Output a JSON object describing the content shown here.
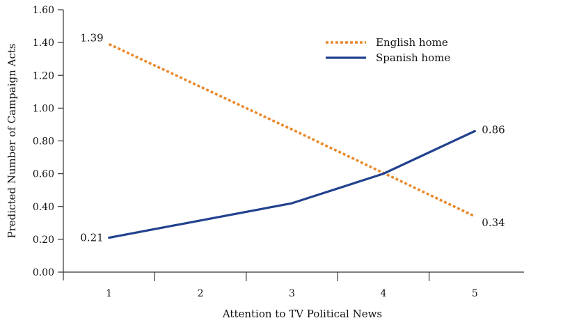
{
  "chart_data": {
    "type": "line",
    "title": "",
    "xlabel": "Attention to TV Political News",
    "ylabel": "Predicted Number of Campaign Acts",
    "x": [
      1,
      2,
      3,
      4,
      5
    ],
    "x_tick_labels": [
      "1",
      "2",
      "3",
      "4",
      "5"
    ],
    "ylim": [
      0,
      1.6
    ],
    "y_ticks": [
      0,
      0.2,
      0.4,
      0.6,
      0.8,
      1.0,
      1.2,
      1.4,
      1.6
    ],
    "y_tick_labels": [
      "0.00",
      "0.20",
      "0.40",
      "0.60",
      "0.80",
      "1.00",
      "1.20",
      "1.40",
      "1.60"
    ],
    "grid": false,
    "legend_position": "top-right",
    "series": [
      {
        "name": "English home",
        "values": [
          1.39,
          1.13,
          0.87,
          0.605,
          0.34
        ],
        "color": "#e8892b",
        "style": "dotted",
        "labels": [
          {
            "index": 0,
            "text": "1.39",
            "side": "left"
          },
          {
            "index": 4,
            "text": "0.34",
            "side": "right-below"
          }
        ]
      },
      {
        "name": "Spanish home",
        "values": [
          0.21,
          0.315,
          0.42,
          0.6,
          0.86
        ],
        "color": "#22418f",
        "style": "solid",
        "labels": [
          {
            "index": 0,
            "text": "0.21",
            "side": "left"
          },
          {
            "index": 4,
            "text": "0.86",
            "side": "right"
          }
        ]
      }
    ]
  }
}
